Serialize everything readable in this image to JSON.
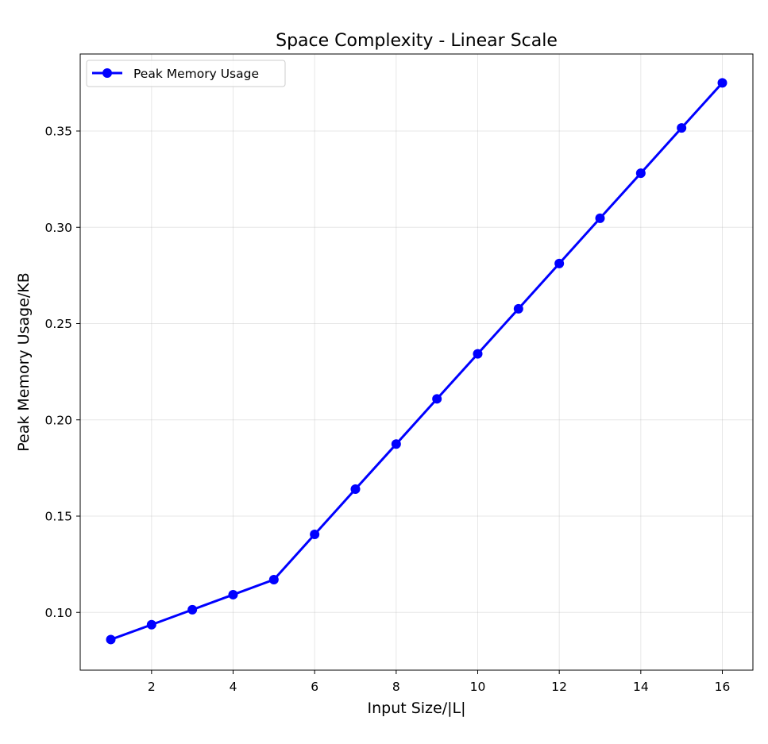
{
  "chart_data": {
    "type": "line",
    "title": "Space Complexity - Linear Scale",
    "xlabel": "Input Size/|L|",
    "ylabel": "Peak Memory Usage/KB",
    "xlim": [
      0.25,
      16.75
    ],
    "ylim": [
      0.07,
      0.39
    ],
    "xticks": [
      2,
      4,
      6,
      8,
      10,
      12,
      14,
      16
    ],
    "xtick_labels": [
      "2",
      "4",
      "6",
      "8",
      "10",
      "12",
      "14",
      "16"
    ],
    "yticks": [
      0.1,
      0.15,
      0.2,
      0.25,
      0.3,
      0.35
    ],
    "ytick_labels": [
      "0.10",
      "0.15",
      "0.20",
      "0.25",
      "0.30",
      "0.35"
    ],
    "grid": true,
    "legend_position": "top-left",
    "series": [
      {
        "name": "Peak Memory Usage",
        "color": "#0000ff",
        "marker": "circle",
        "x": [
          1,
          2,
          3,
          4,
          5,
          6,
          7,
          8,
          9,
          10,
          11,
          12,
          13,
          14,
          15,
          16
        ],
        "y": [
          0.0859,
          0.0936,
          0.1014,
          0.1092,
          0.117,
          0.1405,
          0.164,
          0.1874,
          0.2109,
          0.2343,
          0.2577,
          0.2812,
          0.3047,
          0.3281,
          0.3516,
          0.375
        ]
      }
    ]
  }
}
